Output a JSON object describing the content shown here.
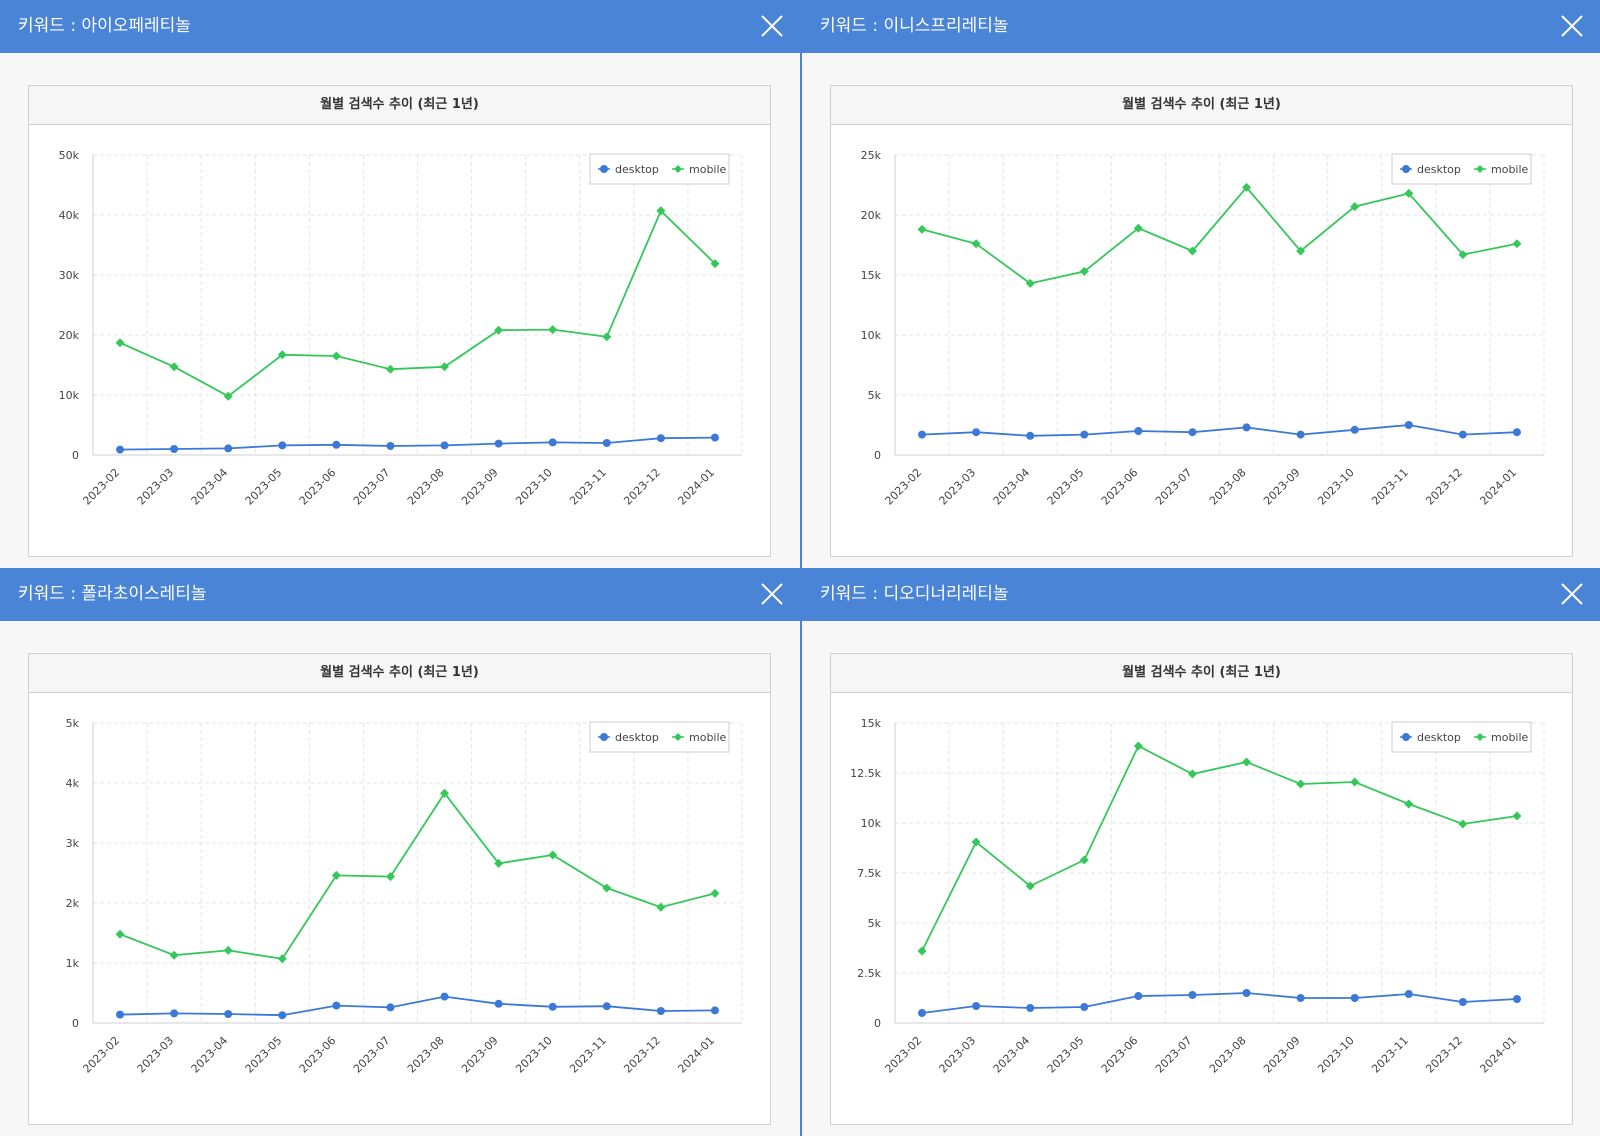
{
  "panels": [
    {
      "keyword_title": "키워드 : 아이오페레티놀",
      "chart_data": {
        "type": "line",
        "title": "월별 검색수 추이 (최근 1년)",
        "categories": [
          "2023-02",
          "2023-03",
          "2023-04",
          "2023-05",
          "2023-06",
          "2023-07",
          "2023-08",
          "2023-09",
          "2023-10",
          "2023-11",
          "2023-12",
          "2024-01"
        ],
        "ylim": [
          0,
          50000
        ],
        "yticks": [
          0,
          10000,
          20000,
          30000,
          40000,
          50000
        ],
        "ytick_labels": [
          "0",
          "10k",
          "20k",
          "30k",
          "40k",
          "50k"
        ],
        "grid": true,
        "legend_position": "top-right",
        "series": [
          {
            "name": "desktop",
            "color": "#3b78d8",
            "marker": "circle",
            "values": [
              900,
              1000,
              1100,
              1600,
              1700,
              1500,
              1600,
              1900,
              2100,
              2000,
              2800,
              2900
            ]
          },
          {
            "name": "mobile",
            "color": "#34c759",
            "marker": "diamond",
            "values": [
              18700,
              14700,
              9800,
              16700,
              16500,
              14300,
              14700,
              20800,
              20900,
              19700,
              40700,
              31900
            ]
          }
        ]
      }
    },
    {
      "keyword_title": "키워드 : 이니스프리레티놀",
      "chart_data": {
        "type": "line",
        "title": "월별 검색수 추이 (최근 1년)",
        "categories": [
          "2023-02",
          "2023-03",
          "2023-04",
          "2023-05",
          "2023-06",
          "2023-07",
          "2023-08",
          "2023-09",
          "2023-10",
          "2023-11",
          "2023-12",
          "2024-01"
        ],
        "ylim": [
          0,
          25000
        ],
        "yticks": [
          0,
          5000,
          10000,
          15000,
          20000,
          25000
        ],
        "ytick_labels": [
          "0",
          "5k",
          "10k",
          "15k",
          "20k",
          "25k"
        ],
        "grid": true,
        "legend_position": "top-right",
        "series": [
          {
            "name": "desktop",
            "color": "#3b78d8",
            "marker": "circle",
            "values": [
              1700,
              1900,
              1600,
              1700,
              2000,
              1900,
              2300,
              1700,
              2100,
              2500,
              1700,
              1900
            ]
          },
          {
            "name": "mobile",
            "color": "#34c759",
            "marker": "diamond",
            "values": [
              18800,
              17600,
              14300,
              15300,
              18900,
              17000,
              22300,
              17000,
              20700,
              21800,
              16700,
              17600
            ]
          }
        ]
      }
    },
    {
      "keyword_title": "키워드 : 폴라초이스레티놀",
      "chart_data": {
        "type": "line",
        "title": "월별 검색수 추이 (최근 1년)",
        "categories": [
          "2023-02",
          "2023-03",
          "2023-04",
          "2023-05",
          "2023-06",
          "2023-07",
          "2023-08",
          "2023-09",
          "2023-10",
          "2023-11",
          "2023-12",
          "2024-01"
        ],
        "ylim": [
          0,
          5000
        ],
        "yticks": [
          0,
          1000,
          2000,
          3000,
          4000,
          5000
        ],
        "ytick_labels": [
          "0",
          "1k",
          "2k",
          "3k",
          "4k",
          "5k"
        ],
        "grid": true,
        "legend_position": "top-right",
        "series": [
          {
            "name": "desktop",
            "color": "#3b78d8",
            "marker": "circle",
            "values": [
              140,
              160,
              150,
              130,
              290,
              260,
              440,
              320,
              270,
              280,
              200,
              210
            ]
          },
          {
            "name": "mobile",
            "color": "#34c759",
            "marker": "diamond",
            "values": [
              1480,
              1130,
              1210,
              1070,
              2460,
              2440,
              3830,
              2660,
              2800,
              2250,
              1930,
              2160
            ]
          }
        ]
      }
    },
    {
      "keyword_title": "키워드 : 디오디너리레티놀",
      "chart_data": {
        "type": "line",
        "title": "월별 검색수 추이 (최근 1년)",
        "categories": [
          "2023-02",
          "2023-03",
          "2023-04",
          "2023-05",
          "2023-06",
          "2023-07",
          "2023-08",
          "2023-09",
          "2023-10",
          "2023-11",
          "2023-12",
          "2024-01"
        ],
        "ylim": [
          0,
          15000
        ],
        "yticks": [
          0,
          2500,
          5000,
          7500,
          10000,
          12500,
          15000
        ],
        "ytick_labels": [
          "0",
          "2.5k",
          "5k",
          "7.5k",
          "10k",
          "12.5k",
          "15k"
        ],
        "grid": true,
        "legend_position": "top-right",
        "series": [
          {
            "name": "desktop",
            "color": "#3b78d8",
            "marker": "circle",
            "values": [
              500,
              850,
              750,
              800,
              1350,
              1400,
              1500,
              1250,
              1250,
              1450,
              1050,
              1200
            ]
          },
          {
            "name": "mobile",
            "color": "#34c759",
            "marker": "diamond",
            "values": [
              3600,
              9050,
              6850,
              8150,
              13850,
              12450,
              13050,
              11950,
              12050,
              10950,
              9950,
              10350
            ]
          }
        ]
      }
    }
  ]
}
